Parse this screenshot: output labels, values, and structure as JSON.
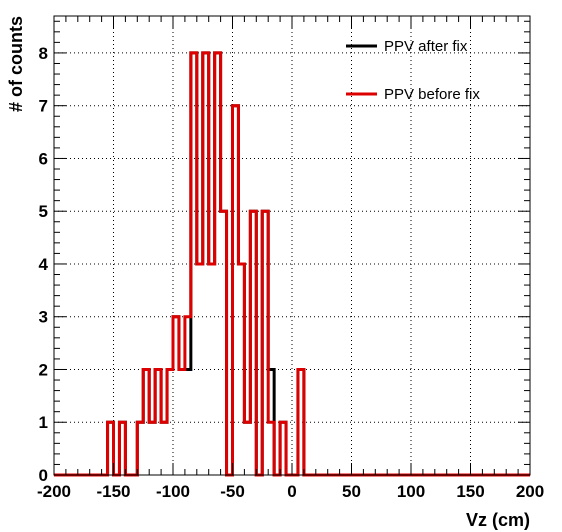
{
  "chart_data": {
    "type": "histogram",
    "title": "",
    "xlabel": "Vz (cm)",
    "ylabel": "# of counts",
    "xlim": [
      -200,
      200
    ],
    "ylim": [
      0,
      8.7
    ],
    "bin_width": 5,
    "bin_start": -200,
    "grid": true,
    "legend_position": "top-right",
    "x_ticks": [
      -200,
      -150,
      -100,
      -50,
      0,
      50,
      100,
      150,
      200
    ],
    "y_ticks": [
      0,
      1,
      2,
      3,
      4,
      5,
      6,
      7,
      8
    ],
    "series": [
      {
        "name": "PPV after fix",
        "color": "#000000",
        "values": [
          0,
          0,
          0,
          0,
          0,
          0,
          0,
          0,
          0,
          1,
          0,
          1,
          0,
          0,
          1,
          2,
          1,
          2,
          1,
          2,
          3,
          2,
          2,
          8,
          4,
          8,
          4,
          8,
          5,
          0,
          7,
          4,
          1,
          5,
          0,
          5,
          2,
          0,
          1,
          0,
          0,
          2,
          0,
          0,
          0,
          0,
          0,
          0,
          0,
          0,
          0,
          0,
          0,
          0,
          0,
          0,
          0,
          0,
          0,
          0,
          0,
          0,
          0,
          0,
          0,
          0,
          0,
          0,
          0,
          0,
          0,
          0,
          0,
          0,
          0,
          0,
          0,
          0,
          0,
          0
        ]
      },
      {
        "name": "PPV before fix",
        "color": "#dd0000",
        "values": [
          0,
          0,
          0,
          0,
          0,
          0,
          0,
          0,
          0,
          1,
          0,
          1,
          0,
          0,
          1,
          2,
          1,
          2,
          1,
          2,
          3,
          2,
          3,
          8,
          4,
          8,
          4,
          8,
          5,
          0,
          7,
          4,
          1,
          5,
          0,
          5,
          1,
          0,
          1,
          0,
          0,
          2,
          0,
          0,
          0,
          0,
          0,
          0,
          0,
          0,
          0,
          0,
          0,
          0,
          0,
          0,
          0,
          0,
          0,
          0,
          0,
          0,
          0,
          0,
          0,
          0,
          0,
          0,
          0,
          0,
          0,
          0,
          0,
          0,
          0,
          0,
          0,
          0,
          0,
          0
        ]
      }
    ]
  }
}
